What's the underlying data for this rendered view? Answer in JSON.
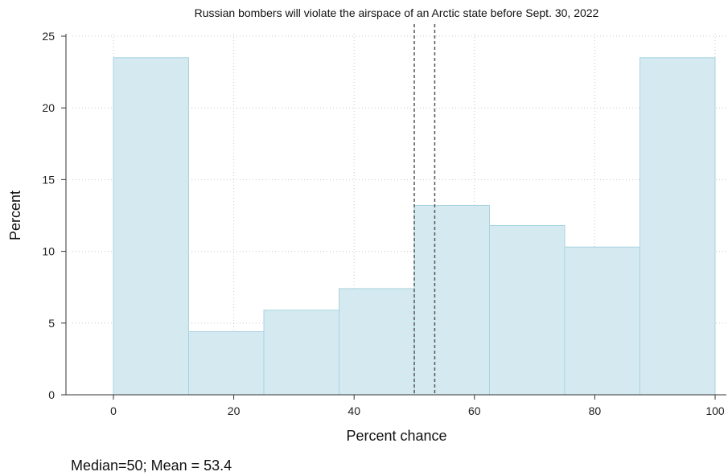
{
  "chart_data": {
    "type": "bar",
    "title": "Russian bombers will violate the airspace of an Arctic state before Sept. 30, 2022",
    "xlabel": "Percent chance",
    "ylabel": "Percent",
    "xlim": [
      -8,
      101
    ],
    "ylim": [
      0,
      25
    ],
    "xticks": [
      0,
      20,
      40,
      60,
      80,
      100
    ],
    "yticks": [
      0,
      5,
      10,
      15,
      20,
      25
    ],
    "bins": [
      {
        "start": 0,
        "end": 12.5,
        "value": 23.5
      },
      {
        "start": 12.5,
        "end": 25,
        "value": 4.4
      },
      {
        "start": 25,
        "end": 37.5,
        "value": 5.9
      },
      {
        "start": 37.5,
        "end": 50,
        "value": 7.4
      },
      {
        "start": 50,
        "end": 62.5,
        "value": 13.2
      },
      {
        "start": 62.5,
        "end": 75,
        "value": 11.8
      },
      {
        "start": 75,
        "end": 87.5,
        "value": 10.3
      },
      {
        "start": 87.5,
        "end": 100,
        "value": 23.5
      }
    ],
    "reference_lines": [
      {
        "label": "Median",
        "x": 50
      },
      {
        "label": "Mean",
        "x": 53.4
      }
    ],
    "grid": true,
    "bar_color": "#d4eaf0",
    "bar_edge_color": "#a8d3e0",
    "note": "Median=50; Mean = 53.4"
  }
}
